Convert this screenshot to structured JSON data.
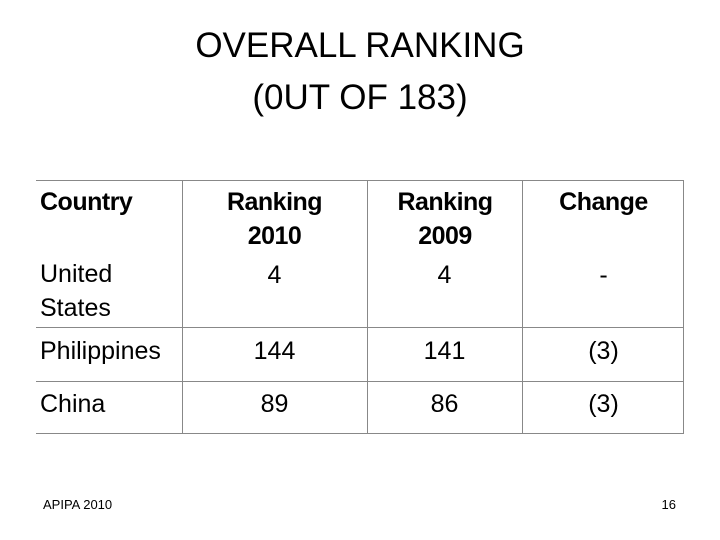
{
  "header": {
    "title": [
      "OVERALL RANKING",
      "(0UT OF 183)"
    ]
  },
  "table": {
    "columns": [
      "Country",
      "Ranking 2010",
      "Ranking 2009",
      "Change"
    ],
    "rows": [
      [
        "United States",
        4,
        4,
        "-"
      ],
      [
        "Philippines",
        144,
        141,
        "(3)"
      ],
      [
        "China",
        89,
        86,
        "(3)"
      ]
    ]
  },
  "footer": {
    "source": "APIPA 2010",
    "page": 16
  }
}
